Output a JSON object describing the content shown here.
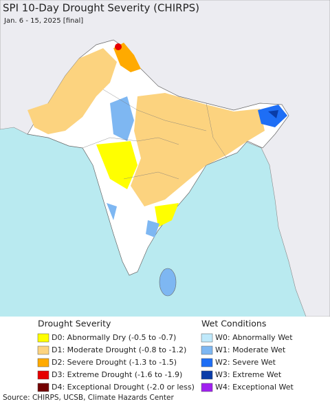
{
  "title": "SPI 10-Day Drought Severity (CHIRPS)",
  "subtitle": "Jan. 6 - 15, 2025 [final]",
  "legend": {
    "drought": {
      "heading": "Drought Severity",
      "items": [
        {
          "label": "D0: Abnormally Dry (-0.5 to -0.7)",
          "color": "#ffff00"
        },
        {
          "label": "D1: Moderate Drought (-0.8 to -1.2)",
          "color": "#fcd37f"
        },
        {
          "label": "D2: Severe Drought (-1.3 to -1.5)",
          "color": "#ffaa00"
        },
        {
          "label": "D3: Extreme Drought (-1.6 to -1.9)",
          "color": "#e60000"
        },
        {
          "label": "D4: Exceptional Drought (-2.0 or less)",
          "color": "#730000"
        }
      ]
    },
    "wet": {
      "heading": "Wet Conditions",
      "items": [
        {
          "label": "W0: Abnormally Wet",
          "color": "#bfe9fb"
        },
        {
          "label": "W1: Moderate Wet",
          "color": "#7eb7f2"
        },
        {
          "label": "W2: Severe Wet",
          "color": "#1e6ef5"
        },
        {
          "label": "W3: Extreme Wet",
          "color": "#0a3ca8"
        },
        {
          "label": "W4: Exceptional Wet",
          "color": "#a020f0"
        }
      ]
    }
  },
  "source": "Source: CHIRPS, UCSB, Climate Hazards Center"
}
